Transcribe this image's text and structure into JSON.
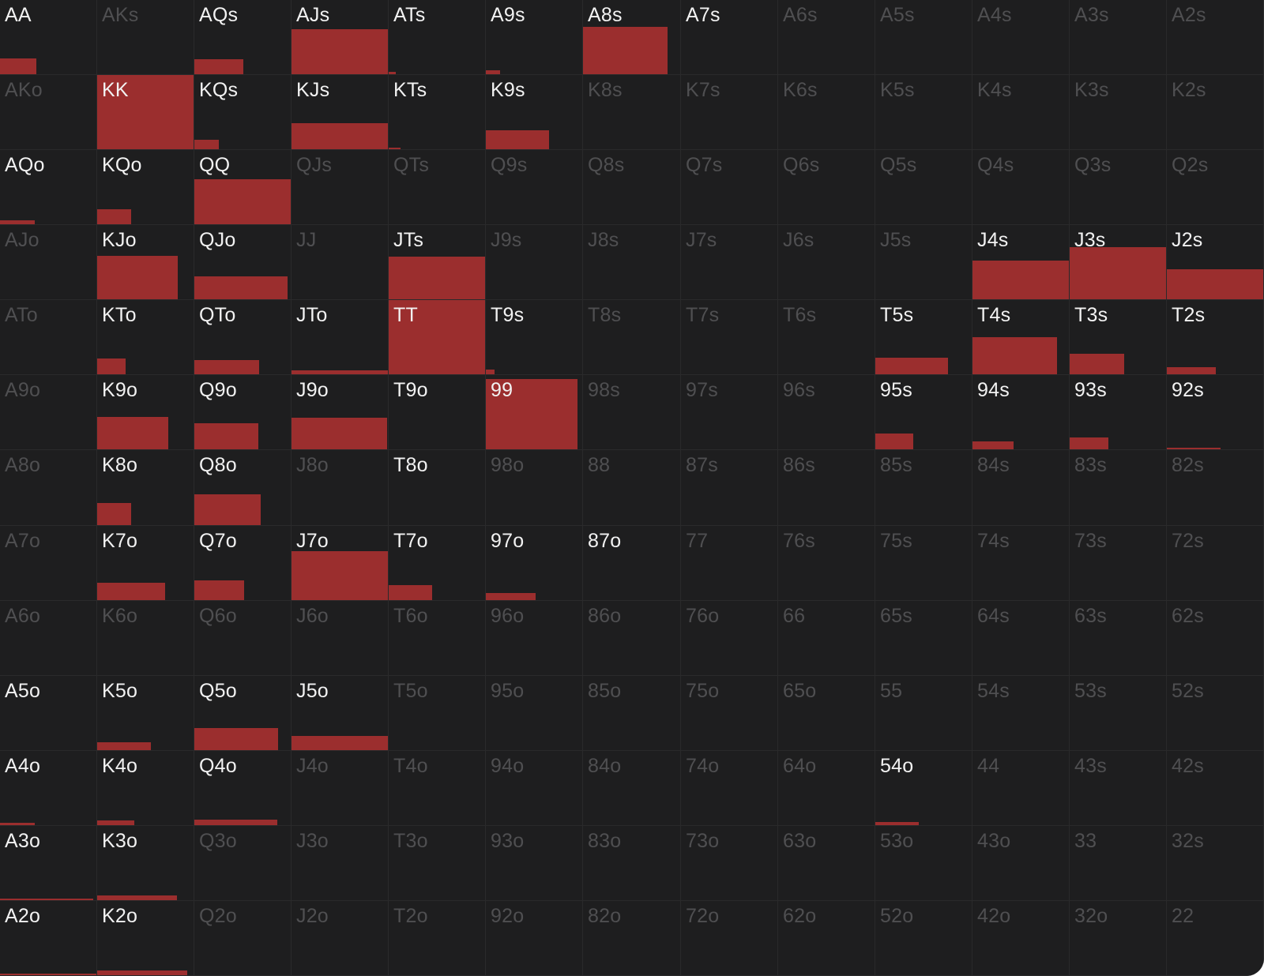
{
  "colors": {
    "background": "#1e1e1f",
    "fill": "#9b2e2e",
    "label_active": "#f2f2f2",
    "label_inactive": "#4f4f51"
  },
  "grid": {
    "rows": [
      [
        {
          "label": "AA",
          "active": true,
          "w": 0.37,
          "h": 0.21
        },
        {
          "label": "AKs",
          "active": false,
          "w": 0,
          "h": 0
        },
        {
          "label": "AQs",
          "active": true,
          "w": 0.5,
          "h": 0.2
        },
        {
          "label": "AJs",
          "active": true,
          "w": 1.0,
          "h": 0.6
        },
        {
          "label": "ATs",
          "active": true,
          "w": 0.07,
          "h": 0.03
        },
        {
          "label": "A9s",
          "active": true,
          "w": 0.15,
          "h": 0.05
        },
        {
          "label": "A8s",
          "active": true,
          "w": 0.86,
          "h": 0.63
        },
        {
          "label": "A7s",
          "active": true,
          "w": 0,
          "h": 0
        },
        {
          "label": "A6s",
          "active": false,
          "w": 0,
          "h": 0
        },
        {
          "label": "A5s",
          "active": false,
          "w": 0,
          "h": 0
        },
        {
          "label": "A4s",
          "active": false,
          "w": 0,
          "h": 0
        },
        {
          "label": "A3s",
          "active": false,
          "w": 0,
          "h": 0
        },
        {
          "label": "A2s",
          "active": false,
          "w": 0,
          "h": 0
        }
      ],
      [
        {
          "label": "AKo",
          "active": false,
          "w": 0,
          "h": 0
        },
        {
          "label": "KK",
          "active": true,
          "w": 0.99,
          "h": 0.99
        },
        {
          "label": "KQs",
          "active": true,
          "w": 0.25,
          "h": 0.13
        },
        {
          "label": "KJs",
          "active": true,
          "w": 1.0,
          "h": 0.35
        },
        {
          "label": "KTs",
          "active": true,
          "w": 0.12,
          "h": 0.02
        },
        {
          "label": "K9s",
          "active": true,
          "w": 0.65,
          "h": 0.25
        },
        {
          "label": "K8s",
          "active": false,
          "w": 0,
          "h": 0
        },
        {
          "label": "K7s",
          "active": false,
          "w": 0,
          "h": 0
        },
        {
          "label": "K6s",
          "active": false,
          "w": 0,
          "h": 0
        },
        {
          "label": "K5s",
          "active": false,
          "w": 0,
          "h": 0
        },
        {
          "label": "K4s",
          "active": false,
          "w": 0,
          "h": 0
        },
        {
          "label": "K3s",
          "active": false,
          "w": 0,
          "h": 0
        },
        {
          "label": "K2s",
          "active": false,
          "w": 0,
          "h": 0
        }
      ],
      [
        {
          "label": "AQo",
          "active": true,
          "w": 0.36,
          "h": 0.05
        },
        {
          "label": "KQo",
          "active": true,
          "w": 0.35,
          "h": 0.2
        },
        {
          "label": "QQ",
          "active": true,
          "w": 1.0,
          "h": 0.6
        },
        {
          "label": "QJs",
          "active": false,
          "w": 0,
          "h": 0
        },
        {
          "label": "QTs",
          "active": false,
          "w": 0,
          "h": 0
        },
        {
          "label": "Q9s",
          "active": false,
          "w": 0,
          "h": 0
        },
        {
          "label": "Q8s",
          "active": false,
          "w": 0,
          "h": 0
        },
        {
          "label": "Q7s",
          "active": false,
          "w": 0,
          "h": 0
        },
        {
          "label": "Q6s",
          "active": false,
          "w": 0,
          "h": 0
        },
        {
          "label": "Q5s",
          "active": false,
          "w": 0,
          "h": 0
        },
        {
          "label": "Q4s",
          "active": false,
          "w": 0,
          "h": 0
        },
        {
          "label": "Q3s",
          "active": false,
          "w": 0,
          "h": 0
        },
        {
          "label": "Q2s",
          "active": false,
          "w": 0,
          "h": 0
        }
      ],
      [
        {
          "label": "AJo",
          "active": false,
          "w": 0,
          "h": 0
        },
        {
          "label": "KJo",
          "active": true,
          "w": 0.83,
          "h": 0.58
        },
        {
          "label": "QJo",
          "active": true,
          "w": 0.96,
          "h": 0.31
        },
        {
          "label": "JJ",
          "active": false,
          "w": 0,
          "h": 0
        },
        {
          "label": "JTs",
          "active": true,
          "w": 1.0,
          "h": 0.57
        },
        {
          "label": "J9s",
          "active": false,
          "w": 0,
          "h": 0
        },
        {
          "label": "J8s",
          "active": false,
          "w": 0,
          "h": 0
        },
        {
          "label": "J7s",
          "active": false,
          "w": 0,
          "h": 0
        },
        {
          "label": "J6s",
          "active": false,
          "w": 0,
          "h": 0
        },
        {
          "label": "J5s",
          "active": false,
          "w": 0,
          "h": 0
        },
        {
          "label": "J4s",
          "active": true,
          "w": 1.0,
          "h": 0.52
        },
        {
          "label": "J3s",
          "active": true,
          "w": 1.0,
          "h": 0.69
        },
        {
          "label": "J2s",
          "active": true,
          "w": 1.0,
          "h": 0.4
        }
      ],
      [
        {
          "label": "ATo",
          "active": false,
          "w": 0,
          "h": 0
        },
        {
          "label": "KTo",
          "active": true,
          "w": 0.29,
          "h": 0.21
        },
        {
          "label": "QTo",
          "active": true,
          "w": 0.67,
          "h": 0.19
        },
        {
          "label": "JTo",
          "active": true,
          "w": 1.0,
          "h": 0.05
        },
        {
          "label": "TT",
          "active": true,
          "w": 0.99,
          "h": 0.99
        },
        {
          "label": "T9s",
          "active": true,
          "w": 0.09,
          "h": 0.06
        },
        {
          "label": "T8s",
          "active": false,
          "w": 0,
          "h": 0
        },
        {
          "label": "T7s",
          "active": false,
          "w": 0,
          "h": 0
        },
        {
          "label": "T6s",
          "active": false,
          "w": 0,
          "h": 0
        },
        {
          "label": "T5s",
          "active": true,
          "w": 0.75,
          "h": 0.22
        },
        {
          "label": "T4s",
          "active": true,
          "w": 0.87,
          "h": 0.49
        },
        {
          "label": "T3s",
          "active": true,
          "w": 0.56,
          "h": 0.27
        },
        {
          "label": "T2s",
          "active": true,
          "w": 0.5,
          "h": 0.09
        }
      ],
      [
        {
          "label": "A9o",
          "active": false,
          "w": 0,
          "h": 0
        },
        {
          "label": "K9o",
          "active": true,
          "w": 0.73,
          "h": 0.43
        },
        {
          "label": "Q9o",
          "active": true,
          "w": 0.66,
          "h": 0.35
        },
        {
          "label": "J9o",
          "active": true,
          "w": 0.98,
          "h": 0.42
        },
        {
          "label": "T9o",
          "active": true,
          "w": 0,
          "h": 0
        },
        {
          "label": "99",
          "active": true,
          "w": 0.94,
          "h": 0.94
        },
        {
          "label": "98s",
          "active": false,
          "w": 0,
          "h": 0
        },
        {
          "label": "97s",
          "active": false,
          "w": 0,
          "h": 0
        },
        {
          "label": "96s",
          "active": false,
          "w": 0,
          "h": 0
        },
        {
          "label": "95s",
          "active": true,
          "w": 0.39,
          "h": 0.21
        },
        {
          "label": "94s",
          "active": true,
          "w": 0.42,
          "h": 0.1
        },
        {
          "label": "93s",
          "active": true,
          "w": 0.4,
          "h": 0.16
        },
        {
          "label": "92s",
          "active": true,
          "w": 0.55,
          "h": 0.02
        }
      ],
      [
        {
          "label": "A8o",
          "active": false,
          "w": 0,
          "h": 0
        },
        {
          "label": "K8o",
          "active": true,
          "w": 0.35,
          "h": 0.29
        },
        {
          "label": "Q8o",
          "active": true,
          "w": 0.68,
          "h": 0.41
        },
        {
          "label": "J8o",
          "active": false,
          "w": 0,
          "h": 0
        },
        {
          "label": "T8o",
          "active": true,
          "w": 0,
          "h": 0
        },
        {
          "label": "98o",
          "active": false,
          "w": 0,
          "h": 0
        },
        {
          "label": "88",
          "active": false,
          "w": 0,
          "h": 0
        },
        {
          "label": "87s",
          "active": false,
          "w": 0,
          "h": 0
        },
        {
          "label": "86s",
          "active": false,
          "w": 0,
          "h": 0
        },
        {
          "label": "85s",
          "active": false,
          "w": 0,
          "h": 0
        },
        {
          "label": "84s",
          "active": false,
          "w": 0,
          "h": 0
        },
        {
          "label": "83s",
          "active": false,
          "w": 0,
          "h": 0
        },
        {
          "label": "82s",
          "active": false,
          "w": 0,
          "h": 0
        }
      ],
      [
        {
          "label": "A7o",
          "active": false,
          "w": 0,
          "h": 0
        },
        {
          "label": "K7o",
          "active": true,
          "w": 0.7,
          "h": 0.23
        },
        {
          "label": "Q7o",
          "active": true,
          "w": 0.51,
          "h": 0.26
        },
        {
          "label": "J7o",
          "active": true,
          "w": 1.0,
          "h": 0.65
        },
        {
          "label": "T7o",
          "active": true,
          "w": 0.45,
          "h": 0.2
        },
        {
          "label": "97o",
          "active": true,
          "w": 0.51,
          "h": 0.09
        },
        {
          "label": "87o",
          "active": true,
          "w": 0,
          "h": 0
        },
        {
          "label": "77",
          "active": false,
          "w": 0,
          "h": 0
        },
        {
          "label": "76s",
          "active": false,
          "w": 0,
          "h": 0
        },
        {
          "label": "75s",
          "active": false,
          "w": 0,
          "h": 0
        },
        {
          "label": "74s",
          "active": false,
          "w": 0,
          "h": 0
        },
        {
          "label": "73s",
          "active": false,
          "w": 0,
          "h": 0
        },
        {
          "label": "72s",
          "active": false,
          "w": 0,
          "h": 0
        }
      ],
      [
        {
          "label": "A6o",
          "active": false,
          "w": 0,
          "h": 0
        },
        {
          "label": "K6o",
          "active": false,
          "w": 0,
          "h": 0
        },
        {
          "label": "Q6o",
          "active": false,
          "w": 0,
          "h": 0
        },
        {
          "label": "J6o",
          "active": false,
          "w": 0,
          "h": 0
        },
        {
          "label": "T6o",
          "active": false,
          "w": 0,
          "h": 0
        },
        {
          "label": "96o",
          "active": false,
          "w": 0,
          "h": 0
        },
        {
          "label": "86o",
          "active": false,
          "w": 0,
          "h": 0
        },
        {
          "label": "76o",
          "active": false,
          "w": 0,
          "h": 0
        },
        {
          "label": "66",
          "active": false,
          "w": 0,
          "h": 0
        },
        {
          "label": "65s",
          "active": false,
          "w": 0,
          "h": 0
        },
        {
          "label": "64s",
          "active": false,
          "w": 0,
          "h": 0
        },
        {
          "label": "63s",
          "active": false,
          "w": 0,
          "h": 0
        },
        {
          "label": "62s",
          "active": false,
          "w": 0,
          "h": 0
        }
      ],
      [
        {
          "label": "A5o",
          "active": true,
          "w": 0,
          "h": 0
        },
        {
          "label": "K5o",
          "active": true,
          "w": 0.55,
          "h": 0.1
        },
        {
          "label": "Q5o",
          "active": true,
          "w": 0.86,
          "h": 0.29
        },
        {
          "label": "J5o",
          "active": true,
          "w": 1.0,
          "h": 0.19
        },
        {
          "label": "T5o",
          "active": false,
          "w": 0,
          "h": 0
        },
        {
          "label": "95o",
          "active": false,
          "w": 0,
          "h": 0
        },
        {
          "label": "85o",
          "active": false,
          "w": 0,
          "h": 0
        },
        {
          "label": "75o",
          "active": false,
          "w": 0,
          "h": 0
        },
        {
          "label": "65o",
          "active": false,
          "w": 0,
          "h": 0
        },
        {
          "label": "55",
          "active": false,
          "w": 0,
          "h": 0
        },
        {
          "label": "54s",
          "active": false,
          "w": 0,
          "h": 0
        },
        {
          "label": "53s",
          "active": false,
          "w": 0,
          "h": 0
        },
        {
          "label": "52s",
          "active": false,
          "w": 0,
          "h": 0
        }
      ],
      [
        {
          "label": "A4o",
          "active": true,
          "w": 0.36,
          "h": 0.03
        },
        {
          "label": "K4o",
          "active": true,
          "w": 0.38,
          "h": 0.06
        },
        {
          "label": "Q4o",
          "active": true,
          "w": 0.85,
          "h": 0.07
        },
        {
          "label": "J4o",
          "active": false,
          "w": 0,
          "h": 0
        },
        {
          "label": "T4o",
          "active": false,
          "w": 0,
          "h": 0
        },
        {
          "label": "94o",
          "active": false,
          "w": 0,
          "h": 0
        },
        {
          "label": "84o",
          "active": false,
          "w": 0,
          "h": 0
        },
        {
          "label": "74o",
          "active": false,
          "w": 0,
          "h": 0
        },
        {
          "label": "64o",
          "active": false,
          "w": 0,
          "h": 0
        },
        {
          "label": "54o",
          "active": true,
          "w": 0.45,
          "h": 0.04
        },
        {
          "label": "44",
          "active": false,
          "w": 0,
          "h": 0
        },
        {
          "label": "43s",
          "active": false,
          "w": 0,
          "h": 0
        },
        {
          "label": "42s",
          "active": false,
          "w": 0,
          "h": 0
        }
      ],
      [
        {
          "label": "A3o",
          "active": true,
          "w": 0.96,
          "h": 0.02
        },
        {
          "label": "K3o",
          "active": true,
          "w": 0.82,
          "h": 0.06
        },
        {
          "label": "Q3o",
          "active": false,
          "w": 0,
          "h": 0
        },
        {
          "label": "J3o",
          "active": false,
          "w": 0,
          "h": 0
        },
        {
          "label": "T3o",
          "active": false,
          "w": 0,
          "h": 0
        },
        {
          "label": "93o",
          "active": false,
          "w": 0,
          "h": 0
        },
        {
          "label": "83o",
          "active": false,
          "w": 0,
          "h": 0
        },
        {
          "label": "73o",
          "active": false,
          "w": 0,
          "h": 0
        },
        {
          "label": "63o",
          "active": false,
          "w": 0,
          "h": 0
        },
        {
          "label": "53o",
          "active": false,
          "w": 0,
          "h": 0
        },
        {
          "label": "43o",
          "active": false,
          "w": 0,
          "h": 0
        },
        {
          "label": "33",
          "active": false,
          "w": 0,
          "h": 0
        },
        {
          "label": "32s",
          "active": false,
          "w": 0,
          "h": 0
        }
      ],
      [
        {
          "label": "A2o",
          "active": true,
          "w": 1.0,
          "h": 0.02
        },
        {
          "label": "K2o",
          "active": true,
          "w": 0.93,
          "h": 0.06
        },
        {
          "label": "Q2o",
          "active": false,
          "w": 0,
          "h": 0
        },
        {
          "label": "J2o",
          "active": false,
          "w": 0,
          "h": 0
        },
        {
          "label": "T2o",
          "active": false,
          "w": 0,
          "h": 0
        },
        {
          "label": "92o",
          "active": false,
          "w": 0,
          "h": 0
        },
        {
          "label": "82o",
          "active": false,
          "w": 0,
          "h": 0
        },
        {
          "label": "72o",
          "active": false,
          "w": 0,
          "h": 0
        },
        {
          "label": "62o",
          "active": false,
          "w": 0,
          "h": 0
        },
        {
          "label": "52o",
          "active": false,
          "w": 0,
          "h": 0
        },
        {
          "label": "42o",
          "active": false,
          "w": 0,
          "h": 0
        },
        {
          "label": "32o",
          "active": false,
          "w": 0,
          "h": 0
        },
        {
          "label": "22",
          "active": false,
          "w": 0,
          "h": 0
        }
      ]
    ]
  }
}
